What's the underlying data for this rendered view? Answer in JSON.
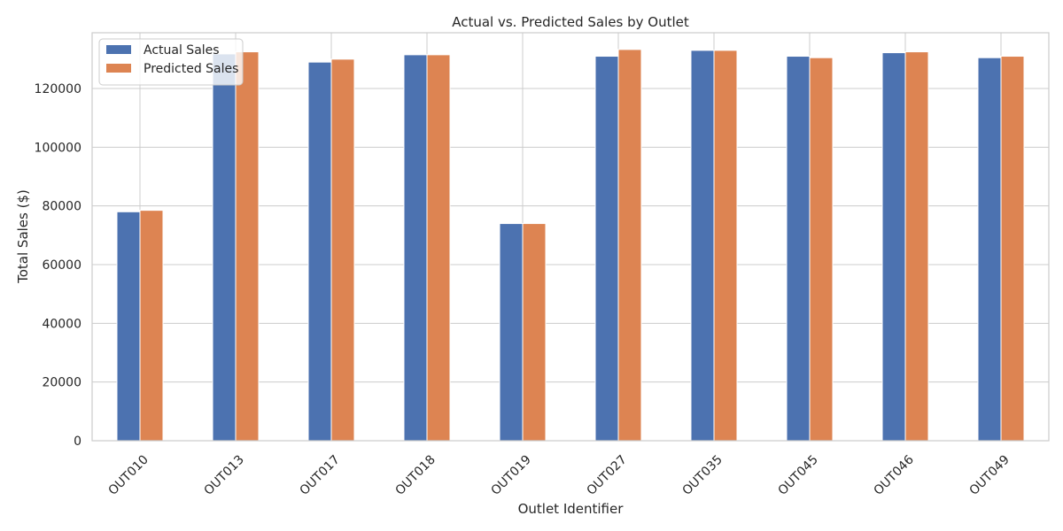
{
  "chart_data": {
    "type": "bar",
    "title": "Actual vs. Predicted Sales by Outlet",
    "xlabel": "Outlet Identifier",
    "ylabel": "Total Sales ($)",
    "categories": [
      "OUT010",
      "OUT013",
      "OUT017",
      "OUT018",
      "OUT019",
      "OUT027",
      "OUT035",
      "OUT045",
      "OUT046",
      "OUT049"
    ],
    "series": [
      {
        "name": "Actual Sales",
        "color": "#4c72b0",
        "values": [
          78000,
          131800,
          129000,
          131500,
          74000,
          131000,
          133000,
          131000,
          132200,
          130500
        ]
      },
      {
        "name": "Predicted Sales",
        "color": "#dd8452",
        "values": [
          78500,
          132500,
          130000,
          131500,
          74000,
          133300,
          133000,
          130500,
          132500,
          131000
        ]
      }
    ],
    "ylim": [
      0,
      139000
    ],
    "yticks": [
      0,
      20000,
      40000,
      60000,
      80000,
      100000,
      120000
    ],
    "ytick_labels": [
      "0",
      "20000",
      "40000",
      "60000",
      "80000",
      "100000",
      "120000"
    ],
    "grid": true,
    "legend_position": "top-left",
    "xtick_rotation": 45
  }
}
